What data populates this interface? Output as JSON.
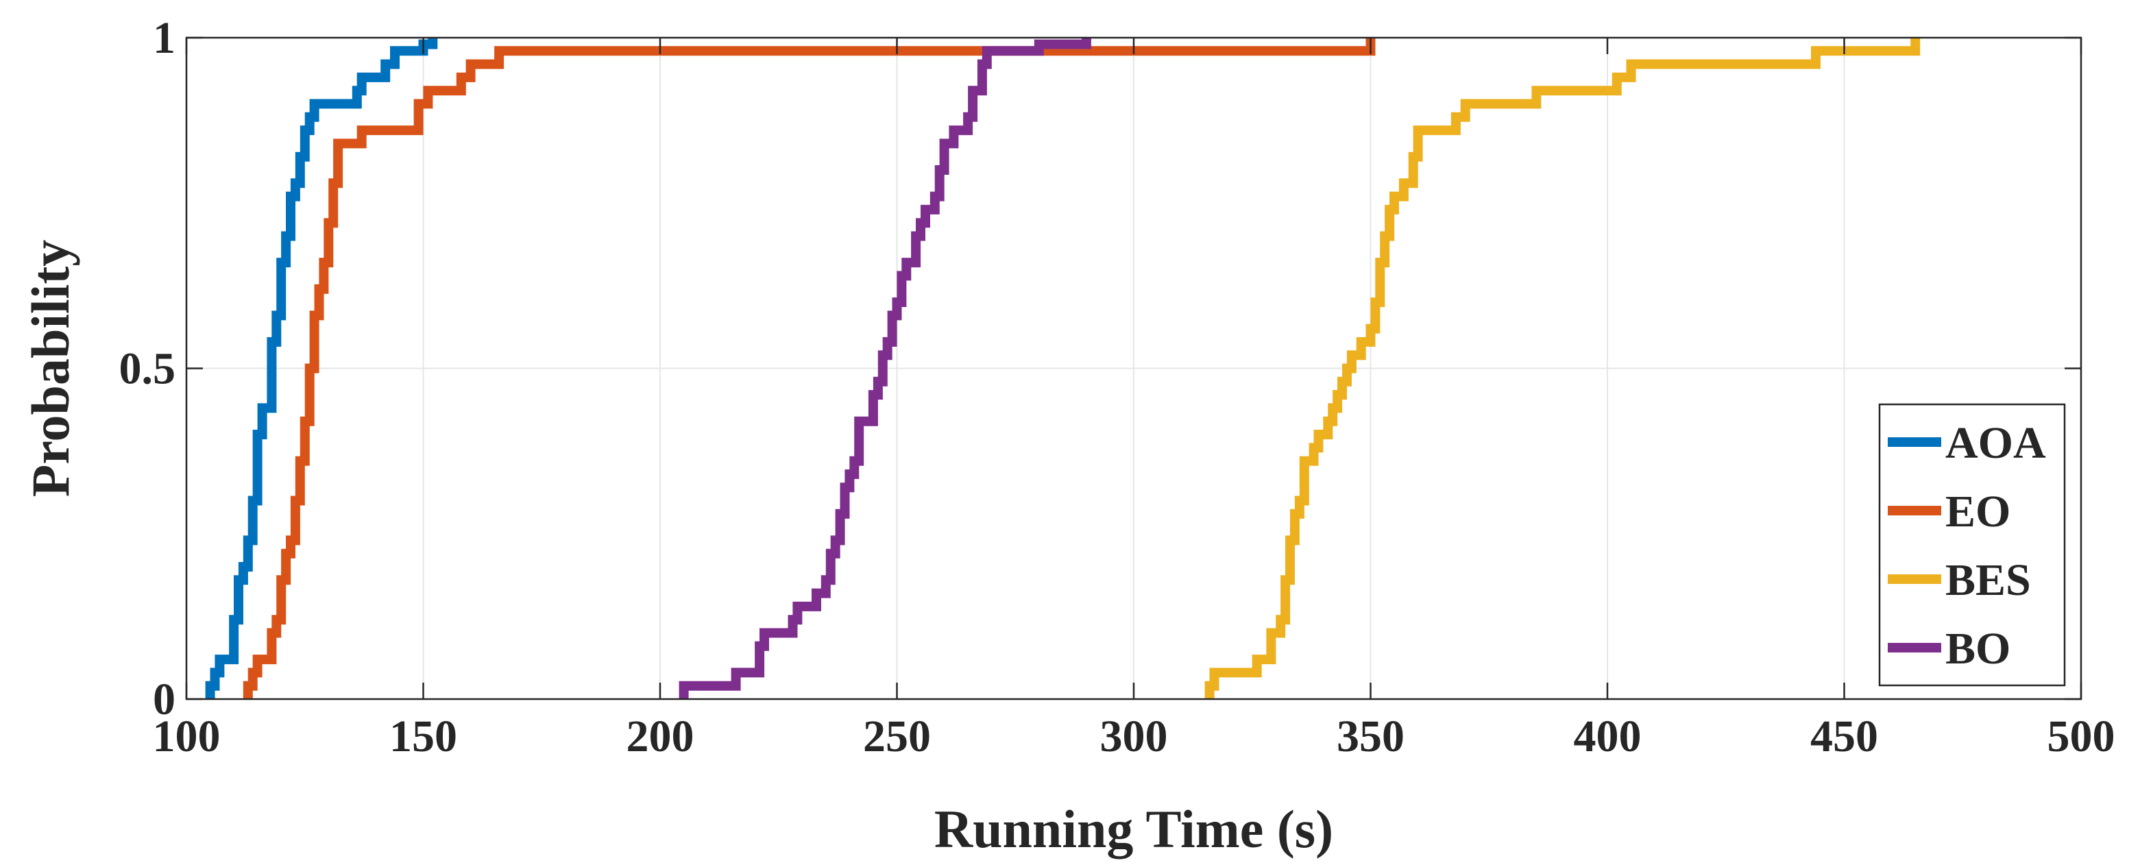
{
  "chart_data": {
    "type": "line",
    "step": true,
    "title": "",
    "xlabel": "Running Time (s)",
    "ylabel": "Probability",
    "xlim": [
      100,
      500
    ],
    "ylim": [
      0,
      1
    ],
    "xticks": [
      100,
      150,
      200,
      250,
      300,
      350,
      400,
      450,
      500
    ],
    "yticks": [
      0,
      0.5,
      1
    ],
    "xtick_labels": [
      "100",
      "150",
      "200",
      "250",
      "300",
      "350",
      "400",
      "450",
      "500"
    ],
    "ytick_labels": [
      "0",
      "0.5",
      "1"
    ],
    "grid": true,
    "legend": {
      "position": "bottom-right"
    },
    "series": [
      {
        "name": "AOA",
        "color": "#0072BD",
        "points": [
          [
            105,
            0
          ],
          [
            105,
            0.02
          ],
          [
            106,
            0.02
          ],
          [
            106,
            0.04
          ],
          [
            107,
            0.04
          ],
          [
            107,
            0.06
          ],
          [
            110,
            0.06
          ],
          [
            110,
            0.12
          ],
          [
            111,
            0.12
          ],
          [
            111,
            0.18
          ],
          [
            112,
            0.18
          ],
          [
            112,
            0.2
          ],
          [
            113,
            0.2
          ],
          [
            113,
            0.24
          ],
          [
            114,
            0.24
          ],
          [
            114,
            0.3
          ],
          [
            115,
            0.3
          ],
          [
            115,
            0.4
          ],
          [
            116,
            0.4
          ],
          [
            116,
            0.44
          ],
          [
            118,
            0.44
          ],
          [
            118,
            0.54
          ],
          [
            119,
            0.54
          ],
          [
            119,
            0.58
          ],
          [
            120,
            0.58
          ],
          [
            120,
            0.66
          ],
          [
            121,
            0.66
          ],
          [
            121,
            0.7
          ],
          [
            122,
            0.7
          ],
          [
            122,
            0.76
          ],
          [
            123,
            0.76
          ],
          [
            123,
            0.78
          ],
          [
            124,
            0.78
          ],
          [
            124,
            0.82
          ],
          [
            125,
            0.82
          ],
          [
            125,
            0.86
          ],
          [
            126,
            0.86
          ],
          [
            126,
            0.88
          ],
          [
            127,
            0.88
          ],
          [
            127,
            0.9
          ],
          [
            136,
            0.9
          ],
          [
            136,
            0.92
          ],
          [
            137,
            0.92
          ],
          [
            137,
            0.94
          ],
          [
            142,
            0.94
          ],
          [
            142,
            0.96
          ],
          [
            144,
            0.96
          ],
          [
            144,
            0.98
          ],
          [
            150,
            0.98
          ],
          [
            150,
            0.99
          ],
          [
            152,
            0.99
          ],
          [
            152,
            1
          ]
        ]
      },
      {
        "name": "EO",
        "color": "#D95319",
        "points": [
          [
            113,
            0
          ],
          [
            113,
            0.02
          ],
          [
            114,
            0.02
          ],
          [
            114,
            0.04
          ],
          [
            115,
            0.04
          ],
          [
            115,
            0.06
          ],
          [
            118,
            0.06
          ],
          [
            118,
            0.1
          ],
          [
            119,
            0.1
          ],
          [
            119,
            0.12
          ],
          [
            120,
            0.12
          ],
          [
            120,
            0.18
          ],
          [
            121,
            0.18
          ],
          [
            121,
            0.22
          ],
          [
            122,
            0.22
          ],
          [
            122,
            0.24
          ],
          [
            123,
            0.24
          ],
          [
            123,
            0.3
          ],
          [
            124,
            0.3
          ],
          [
            124,
            0.36
          ],
          [
            125,
            0.36
          ],
          [
            125,
            0.42
          ],
          [
            126,
            0.42
          ],
          [
            126,
            0.5
          ],
          [
            127,
            0.5
          ],
          [
            127,
            0.58
          ],
          [
            128,
            0.58
          ],
          [
            128,
            0.62
          ],
          [
            129,
            0.62
          ],
          [
            129,
            0.66
          ],
          [
            130,
            0.66
          ],
          [
            130,
            0.72
          ],
          [
            131,
            0.72
          ],
          [
            131,
            0.78
          ],
          [
            132,
            0.78
          ],
          [
            132,
            0.84
          ],
          [
            137,
            0.84
          ],
          [
            137,
            0.86
          ],
          [
            149,
            0.86
          ],
          [
            149,
            0.9
          ],
          [
            151,
            0.9
          ],
          [
            151,
            0.92
          ],
          [
            158,
            0.92
          ],
          [
            158,
            0.94
          ],
          [
            160,
            0.94
          ],
          [
            160,
            0.96
          ],
          [
            166,
            0.96
          ],
          [
            166,
            0.98
          ],
          [
            350,
            0.98
          ],
          [
            350,
            1
          ]
        ]
      },
      {
        "name": "BES",
        "color": "#EDB120",
        "points": [
          [
            316,
            0
          ],
          [
            316,
            0.02
          ],
          [
            317,
            0.02
          ],
          [
            317,
            0.04
          ],
          [
            326,
            0.04
          ],
          [
            326,
            0.06
          ],
          [
            329,
            0.06
          ],
          [
            329,
            0.1
          ],
          [
            331,
            0.1
          ],
          [
            331,
            0.12
          ],
          [
            332,
            0.12
          ],
          [
            332,
            0.18
          ],
          [
            333,
            0.18
          ],
          [
            333,
            0.24
          ],
          [
            334,
            0.24
          ],
          [
            334,
            0.28
          ],
          [
            335,
            0.28
          ],
          [
            335,
            0.3
          ],
          [
            336,
            0.3
          ],
          [
            336,
            0.36
          ],
          [
            338,
            0.36
          ],
          [
            338,
            0.38
          ],
          [
            339,
            0.38
          ],
          [
            339,
            0.4
          ],
          [
            341,
            0.4
          ],
          [
            341,
            0.42
          ],
          [
            342,
            0.42
          ],
          [
            342,
            0.44
          ],
          [
            343,
            0.44
          ],
          [
            343,
            0.46
          ],
          [
            344,
            0.46
          ],
          [
            344,
            0.48
          ],
          [
            345,
            0.48
          ],
          [
            345,
            0.5
          ],
          [
            346,
            0.5
          ],
          [
            346,
            0.52
          ],
          [
            348,
            0.52
          ],
          [
            348,
            0.54
          ],
          [
            350,
            0.54
          ],
          [
            350,
            0.56
          ],
          [
            351,
            0.56
          ],
          [
            351,
            0.6
          ],
          [
            352,
            0.6
          ],
          [
            352,
            0.66
          ],
          [
            353,
            0.66
          ],
          [
            353,
            0.7
          ],
          [
            354,
            0.7
          ],
          [
            354,
            0.74
          ],
          [
            355,
            0.74
          ],
          [
            355,
            0.76
          ],
          [
            357,
            0.76
          ],
          [
            357,
            0.78
          ],
          [
            359,
            0.78
          ],
          [
            359,
            0.82
          ],
          [
            360,
            0.82
          ],
          [
            360,
            0.86
          ],
          [
            368,
            0.86
          ],
          [
            368,
            0.88
          ],
          [
            370,
            0.88
          ],
          [
            370,
            0.9
          ],
          [
            385,
            0.9
          ],
          [
            385,
            0.92
          ],
          [
            402,
            0.92
          ],
          [
            402,
            0.94
          ],
          [
            405,
            0.94
          ],
          [
            405,
            0.96
          ],
          [
            444,
            0.96
          ],
          [
            444,
            0.98
          ],
          [
            465,
            0.98
          ],
          [
            465,
            1
          ]
        ]
      },
      {
        "name": "BO",
        "color": "#7E2F8E",
        "points": [
          [
            205,
            0
          ],
          [
            205,
            0.02
          ],
          [
            216,
            0.02
          ],
          [
            216,
            0.04
          ],
          [
            221,
            0.04
          ],
          [
            221,
            0.08
          ],
          [
            222,
            0.08
          ],
          [
            222,
            0.1
          ],
          [
            228,
            0.1
          ],
          [
            228,
            0.12
          ],
          [
            229,
            0.12
          ],
          [
            229,
            0.14
          ],
          [
            233,
            0.14
          ],
          [
            233,
            0.16
          ],
          [
            235,
            0.16
          ],
          [
            235,
            0.18
          ],
          [
            236,
            0.18
          ],
          [
            236,
            0.22
          ],
          [
            237,
            0.22
          ],
          [
            237,
            0.24
          ],
          [
            238,
            0.24
          ],
          [
            238,
            0.28
          ],
          [
            239,
            0.28
          ],
          [
            239,
            0.32
          ],
          [
            240,
            0.32
          ],
          [
            240,
            0.34
          ],
          [
            241,
            0.34
          ],
          [
            241,
            0.36
          ],
          [
            242,
            0.36
          ],
          [
            242,
            0.42
          ],
          [
            245,
            0.42
          ],
          [
            245,
            0.46
          ],
          [
            246,
            0.46
          ],
          [
            246,
            0.48
          ],
          [
            247,
            0.48
          ],
          [
            247,
            0.52
          ],
          [
            248,
            0.52
          ],
          [
            248,
            0.54
          ],
          [
            249,
            0.54
          ],
          [
            249,
            0.58
          ],
          [
            250,
            0.58
          ],
          [
            250,
            0.6
          ],
          [
            251,
            0.6
          ],
          [
            251,
            0.64
          ],
          [
            252,
            0.64
          ],
          [
            252,
            0.66
          ],
          [
            254,
            0.66
          ],
          [
            254,
            0.7
          ],
          [
            255,
            0.7
          ],
          [
            255,
            0.72
          ],
          [
            256,
            0.72
          ],
          [
            256,
            0.74
          ],
          [
            258,
            0.74
          ],
          [
            258,
            0.76
          ],
          [
            259,
            0.76
          ],
          [
            259,
            0.8
          ],
          [
            260,
            0.8
          ],
          [
            260,
            0.84
          ],
          [
            262,
            0.84
          ],
          [
            262,
            0.86
          ],
          [
            265,
            0.86
          ],
          [
            265,
            0.88
          ],
          [
            266,
            0.88
          ],
          [
            266,
            0.92
          ],
          [
            268,
            0.92
          ],
          [
            268,
            0.96
          ],
          [
            269,
            0.96
          ],
          [
            269,
            0.98
          ],
          [
            280,
            0.98
          ],
          [
            280,
            0.99
          ],
          [
            290,
            0.99
          ],
          [
            290,
            1
          ]
        ]
      }
    ]
  }
}
